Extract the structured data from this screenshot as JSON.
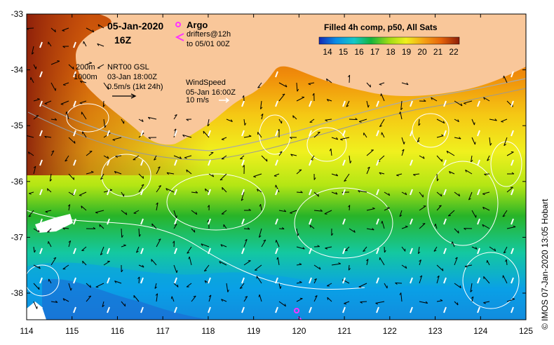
{
  "map": {
    "date": "05-Jan-2020",
    "hour": "16Z",
    "argo_label": "Argo",
    "drifters_line1": "drifters@12h",
    "drifters_line2": "to 05/01 00Z",
    "isobath_200": "200m",
    "isobath_1000": "1000m",
    "gsl_title": "NRT00 GSL",
    "gsl_time": "03-Jan 18:00Z",
    "gsl_scale": "0.5m/s (1kt 24h)",
    "wind_title": "WindSpeed",
    "wind_time": "05-Jan 16:00Z",
    "wind_scale": "10 m/s",
    "colorbar_title": "Filled 4h comp, p50, All Sats",
    "colorbar_ticks": [
      "14",
      "15",
      "16",
      "17",
      "18",
      "19",
      "20",
      "21",
      "22"
    ],
    "lon_ticks": [
      "114",
      "115",
      "116",
      "117",
      "118",
      "119",
      "120",
      "121",
      "122",
      "123",
      "124",
      "125"
    ],
    "lat_ticks": [
      "-33",
      "-34",
      "-35",
      "-36",
      "-37",
      "-38"
    ],
    "credit": "© IMOS 07-Jan-2020 13:05 Hobart",
    "colors": {
      "land": "#f9c79a",
      "argo": "#ff33ff",
      "contour": "#ffffff",
      "arrow": "#000000"
    },
    "palette": [
      "#1e3cc8",
      "#0aa0e6",
      "#14c8b4",
      "#28b428",
      "#5ac832",
      "#b4e614",
      "#f0f01e",
      "#f5c814",
      "#f08c0a",
      "#c8500a",
      "#8c1e0a"
    ]
  }
}
